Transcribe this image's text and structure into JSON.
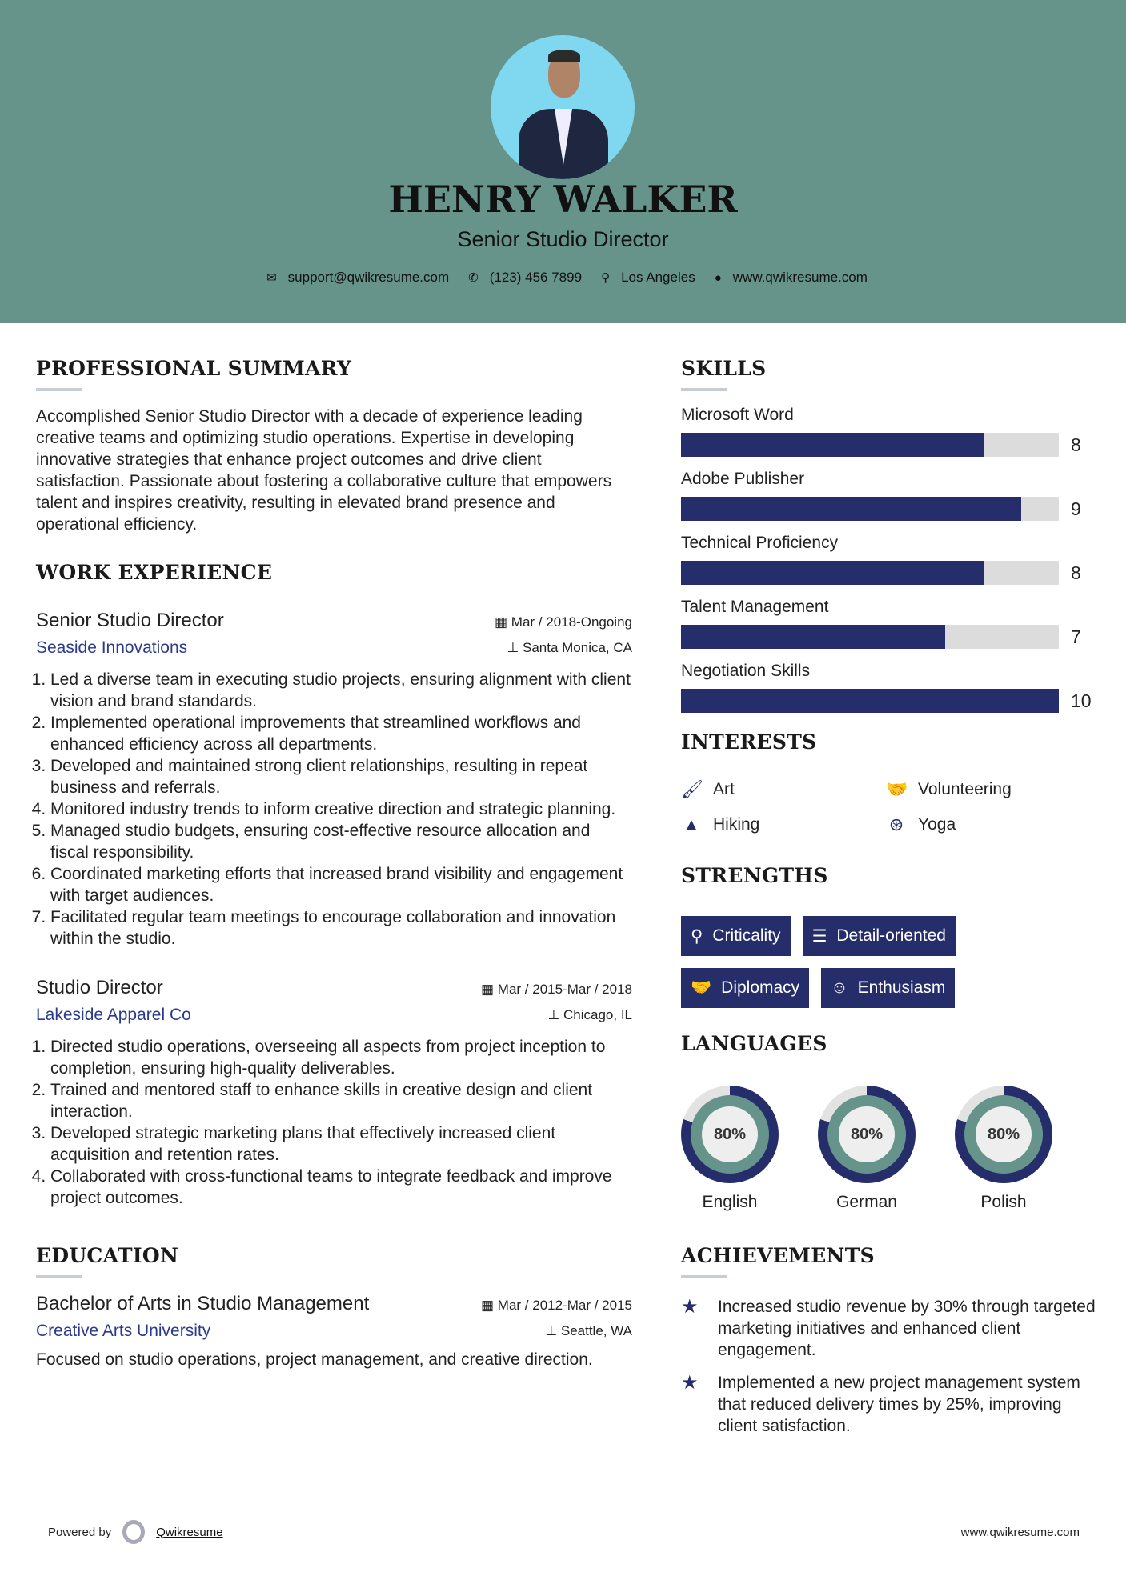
{
  "header": {
    "name": "HENRY WALKER",
    "role": "Senior Studio Director",
    "contact": [
      {
        "icon": "envelope-icon",
        "text": "support@qwikresume.com"
      },
      {
        "icon": "phone-icon",
        "text": "(123) 456 7899"
      },
      {
        "icon": "map-marker-icon",
        "text": "Los Angeles"
      },
      {
        "icon": "globe-icon",
        "text": "www.qwikresume.com"
      }
    ]
  },
  "summary": {
    "heading": "PROFESSIONAL SUMMARY",
    "text": "Accomplished Senior Studio Director with a decade of experience leading creative teams and optimizing studio operations. Expertise in developing innovative strategies that enhance project outcomes and drive client satisfaction. Passionate about fostering a collaborative culture that empowers talent and inspires creativity, resulting in elevated brand presence and operational efficiency."
  },
  "work": {
    "heading": "WORK EXPERIENCE",
    "jobs": [
      {
        "title": "Senior Studio Director",
        "company": "Seaside Innovations",
        "date": "Mar / 2018-Ongoing",
        "location": "Santa Monica, CA",
        "bullets": [
          "Led a diverse team in executing studio projects, ensuring alignment with client vision and brand standards.",
          "Implemented operational improvements that streamlined workflows and enhanced efficiency across all departments.",
          "Developed and maintained strong client relationships, resulting in repeat business and referrals.",
          "Monitored industry trends to inform creative direction and strategic planning.",
          "Managed studio budgets, ensuring cost-effective resource allocation and fiscal responsibility.",
          "Coordinated marketing efforts that increased brand visibility and engagement with target audiences.",
          "Facilitated regular team meetings to encourage collaboration and innovation within the studio."
        ]
      },
      {
        "title": "Studio Director",
        "company": "Lakeside Apparel Co",
        "date": "Mar / 2015-Mar / 2018",
        "location": "Chicago, IL",
        "bullets": [
          "Directed studio operations, overseeing all aspects from project inception to completion, ensuring high-quality deliverables.",
          "Trained and mentored staff to enhance skills in creative design and client interaction.",
          "Developed strategic marketing plans that effectively increased client acquisition and retention rates.",
          "Collaborated with cross-functional teams to integrate feedback and improve project outcomes."
        ]
      }
    ]
  },
  "education": {
    "heading": "EDUCATION",
    "degree": "Bachelor of Arts in Studio Management",
    "school": "Creative Arts University",
    "date": "Mar / 2012-Mar / 2015",
    "location": "Seattle, WA",
    "text": "Focused on studio operations, project management, and creative direction."
  },
  "skills": {
    "heading": "SKILLS",
    "items": [
      {
        "name": "Microsoft Word",
        "level": 8
      },
      {
        "name": "Adobe Publisher",
        "level": 9
      },
      {
        "name": "Technical Proficiency",
        "level": 8
      },
      {
        "name": "Talent Management",
        "level": 7
      },
      {
        "name": "Negotiation Skills",
        "level": 10
      }
    ],
    "max": 10
  },
  "interests": {
    "heading": "INTERESTS",
    "items": [
      {
        "icon": "paintbrush-icon",
        "label": "Art"
      },
      {
        "icon": "handshake-icon",
        "label": "Volunteering"
      },
      {
        "icon": "tree-icon",
        "label": "Hiking"
      },
      {
        "icon": "life-ring-icon",
        "label": "Yoga"
      }
    ]
  },
  "strengths": {
    "heading": "STRENGTHS",
    "items": [
      {
        "icon": "search-icon",
        "label": "Criticality"
      },
      {
        "icon": "list-icon",
        "label": "Detail-oriented"
      },
      {
        "icon": "handshake-icon",
        "label": "Diplomacy"
      },
      {
        "icon": "smile-icon",
        "label": "Enthusiasm"
      }
    ]
  },
  "languages": {
    "heading": "LANGUAGES",
    "items": [
      {
        "name": "English",
        "percent": 80,
        "label": "80%"
      },
      {
        "name": "German",
        "percent": 80,
        "label": "80%"
      },
      {
        "name": "Polish",
        "percent": 80,
        "label": "80%"
      }
    ]
  },
  "achievements": {
    "heading": "ACHIEVEMENTS",
    "items": [
      "Increased studio revenue by 30% through targeted marketing initiatives and enhanced client engagement.",
      "Implemented a new project management system that reduced delivery times by 25%, improving client satisfaction."
    ]
  },
  "footer": {
    "powered_by": "Powered by",
    "brand": "Qwikresume",
    "website": "www.qwikresume.com"
  },
  "colors": {
    "header_bg": "#66938a",
    "accent": "#252e6b",
    "bar_track": "#dcdcdc"
  }
}
